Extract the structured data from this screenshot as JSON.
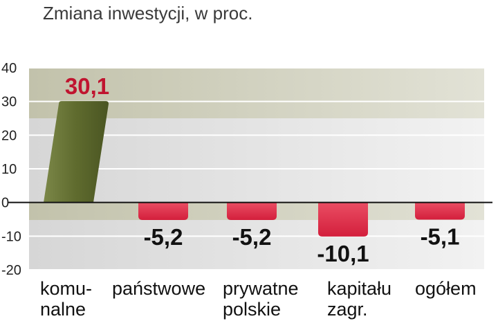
{
  "title": "Zmiana inwestycji, w proc.",
  "chart_data": {
    "type": "bar",
    "title": "Zmiana inwestycji, w proc.",
    "categories": [
      [
        "komu-",
        "nalne"
      ],
      [
        "państwowe"
      ],
      [
        "prywatne",
        "polskie"
      ],
      [
        "kapitału",
        "zagr."
      ],
      [
        "ogółem"
      ]
    ],
    "values": [
      30.1,
      -5.2,
      -5.2,
      -10.1,
      -5.1
    ],
    "value_labels": [
      "30,1",
      "-5,2",
      "-5,2",
      "-10,1",
      "-5,1"
    ],
    "yticks": [
      "40",
      "30",
      "20",
      "10",
      "0",
      "-10",
      "-20"
    ],
    "ylim": [
      -20,
      40
    ],
    "xlabel": "",
    "ylabel": "",
    "grid": true,
    "colors": {
      "positive_bar": "#5f6b2e",
      "negative_bar": "#e02a45",
      "positive_label": "#c0142f",
      "negative_label": "#111111",
      "band_dark": "#c9c9b4",
      "band_light": "#e4e4e4",
      "zero_line": "#111111"
    }
  }
}
